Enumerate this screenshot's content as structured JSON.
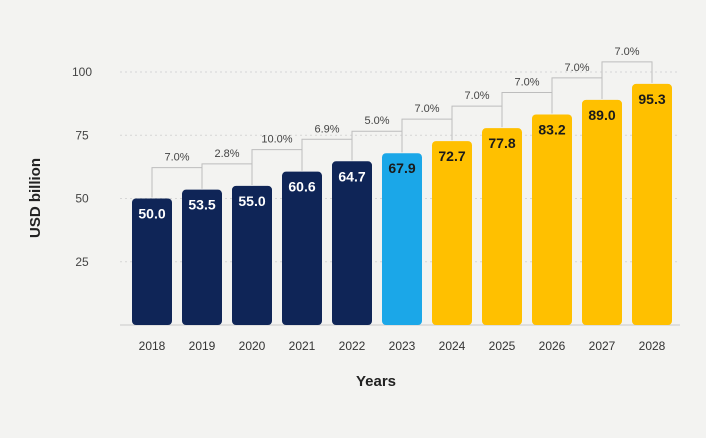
{
  "chart_data": {
    "type": "bar",
    "xlabel": "Years",
    "ylabel": "USD billion",
    "ylim": [
      0,
      100
    ],
    "yticks": [
      25,
      50,
      75,
      100
    ],
    "grid": true,
    "categories": [
      "2018",
      "2019",
      "2020",
      "2021",
      "2022",
      "2023",
      "2024",
      "2025",
      "2026",
      "2027",
      "2028"
    ],
    "values": [
      50.0,
      53.5,
      55.0,
      60.6,
      64.7,
      67.9,
      72.7,
      77.8,
      83.2,
      89.0,
      95.3
    ],
    "value_labels": [
      "50.0",
      "53.5",
      "55.0",
      "60.6",
      "64.7",
      "67.9",
      "72.7",
      "77.8",
      "83.2",
      "89.0",
      "95.3"
    ],
    "growth_labels": [
      "7.0%",
      "2.8%",
      "10.0%",
      "6.9%",
      "5.0%",
      "7.0%",
      "7.0%",
      "7.0%",
      "7.0%",
      "7.0%"
    ],
    "bar_colors": [
      "#0f2557",
      "#0f2557",
      "#0f2557",
      "#0f2557",
      "#0f2557",
      "#1ba7e8",
      "#ffc000",
      "#ffc000",
      "#ffc000",
      "#ffc000",
      "#ffc000"
    ],
    "value_label_colors": [
      "#ffffff",
      "#ffffff",
      "#ffffff",
      "#ffffff",
      "#ffffff",
      "#1a1a1a",
      "#1a1a1a",
      "#1a1a1a",
      "#1a1a1a",
      "#1a1a1a",
      "#1a1a1a"
    ]
  }
}
